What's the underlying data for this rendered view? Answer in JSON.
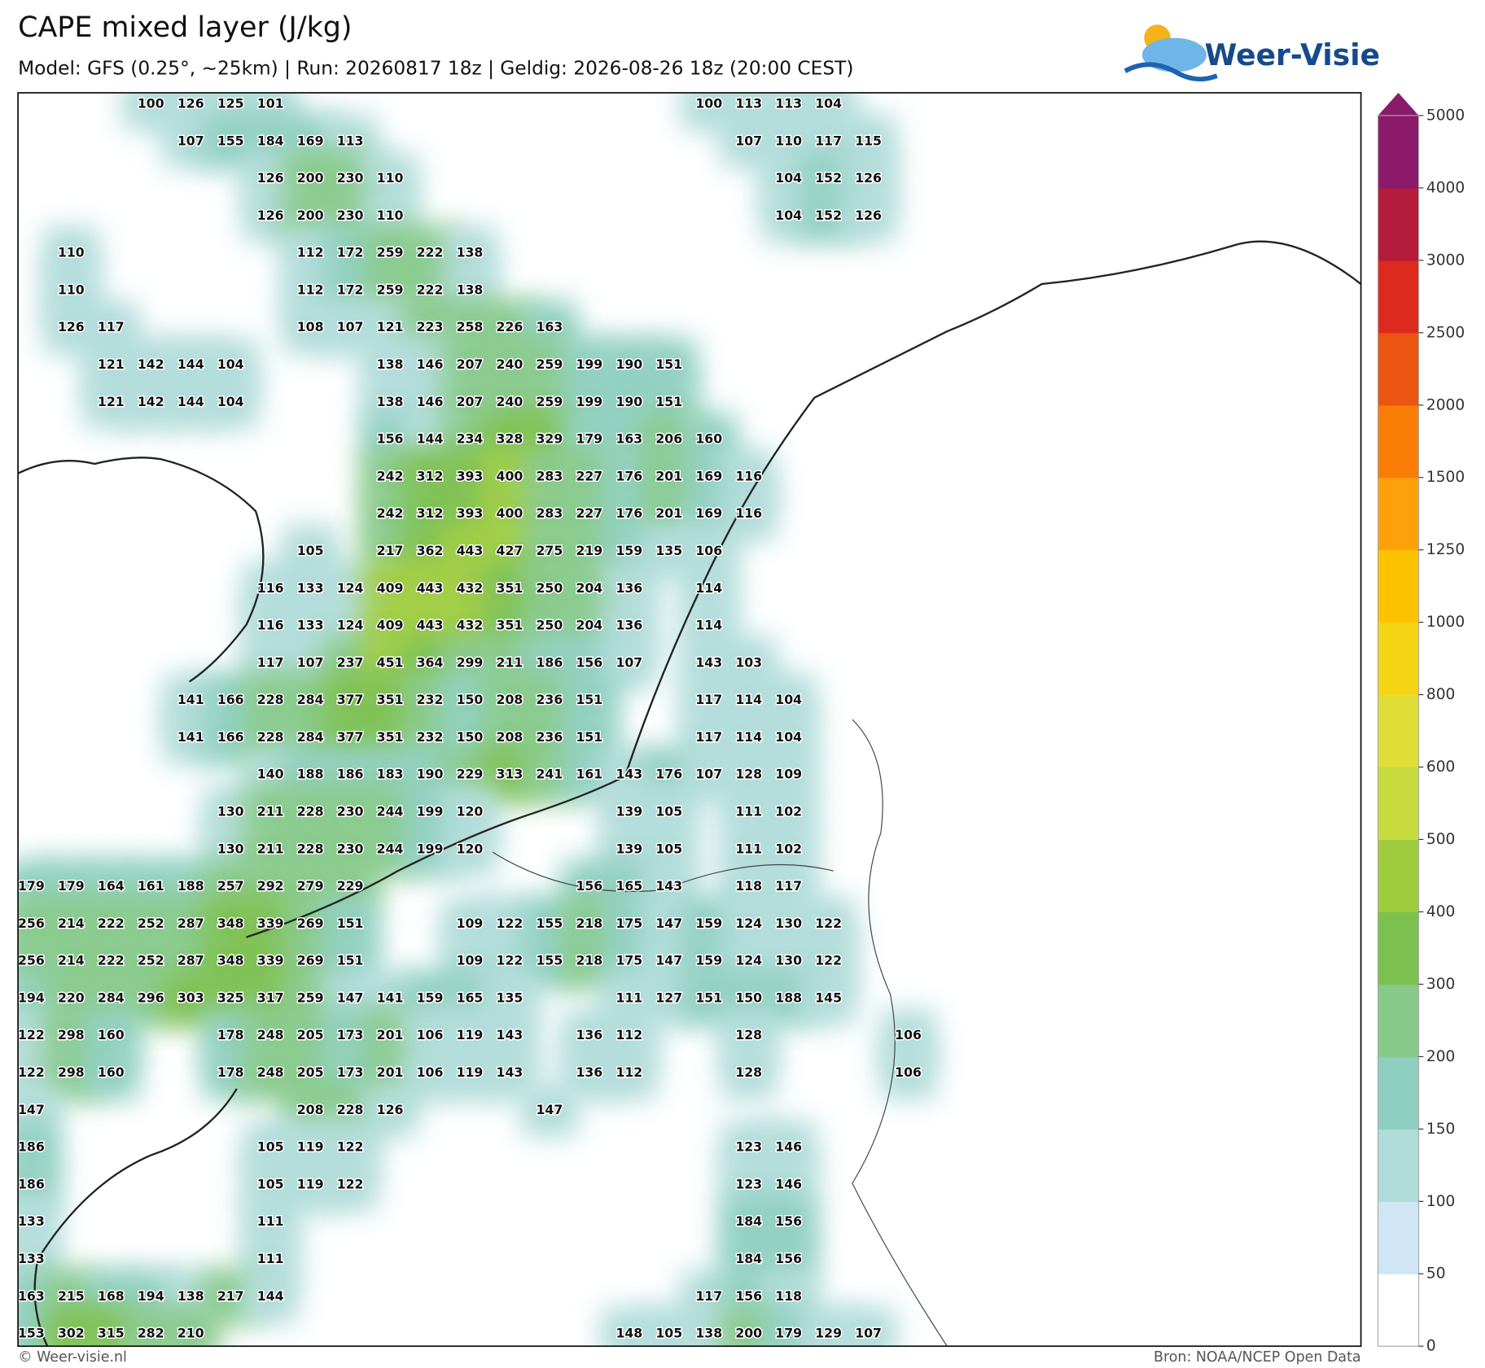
{
  "header": {
    "title": "CAPE mixed layer (J/kg)",
    "subtitle": "Model: GFS (0.25°, ~25km)  |  Run: 20260817 18z  |  Geldig: 2026-08-26 18z (20:00 CEST)"
  },
  "logo": {
    "text": "Weer-Visie"
  },
  "map": {
    "rows": [
      [
        null,
        null,
        null,
        100,
        126,
        125,
        101,
        null,
        null,
        null,
        null,
        null,
        null,
        null,
        null,
        null,
        null,
        100,
        113,
        113,
        104,
        null,
        null
      ],
      [
        null,
        null,
        null,
        null,
        107,
        155,
        184,
        169,
        113,
        null,
        null,
        null,
        null,
        null,
        null,
        null,
        null,
        null,
        107,
        110,
        117,
        115,
        null
      ],
      [
        null,
        null,
        null,
        null,
        null,
        null,
        126,
        200,
        230,
        110,
        null,
        null,
        null,
        null,
        null,
        null,
        null,
        null,
        null,
        104,
        152,
        126,
        null
      ],
      [
        null,
        null,
        null,
        null,
        null,
        null,
        126,
        200,
        230,
        110,
        null,
        null,
        null,
        null,
        null,
        null,
        null,
        null,
        null,
        104,
        152,
        126,
        null
      ],
      [
        null,
        110,
        null,
        null,
        null,
        null,
        null,
        112,
        172,
        259,
        222,
        138,
        null,
        null,
        null,
        null,
        null,
        null,
        null,
        null,
        null,
        null,
        null
      ],
      [
        null,
        110,
        null,
        null,
        null,
        null,
        null,
        112,
        172,
        259,
        222,
        138,
        null,
        null,
        null,
        null,
        null,
        null,
        null,
        null,
        null,
        null,
        null
      ],
      [
        null,
        126,
        117,
        null,
        null,
        null,
        null,
        108,
        107,
        121,
        223,
        258,
        226,
        163,
        null,
        null,
        null,
        null,
        null,
        null,
        null,
        null,
        null
      ],
      [
        null,
        null,
        121,
        142,
        144,
        104,
        null,
        null,
        null,
        138,
        146,
        207,
        240,
        259,
        199,
        190,
        151,
        null,
        null,
        null,
        null,
        null,
        null
      ],
      [
        null,
        null,
        121,
        142,
        144,
        104,
        null,
        null,
        null,
        138,
        146,
        207,
        240,
        259,
        199,
        190,
        151,
        null,
        null,
        null,
        null,
        null,
        null
      ],
      [
        null,
        null,
        null,
        null,
        null,
        null,
        null,
        null,
        null,
        156,
        144,
        234,
        328,
        329,
        179,
        163,
        206,
        160,
        null,
        null,
        null,
        null,
        null
      ],
      [
        null,
        null,
        null,
        null,
        null,
        null,
        null,
        null,
        null,
        242,
        312,
        393,
        400,
        283,
        227,
        176,
        201,
        169,
        116,
        null,
        null,
        null,
        null
      ],
      [
        null,
        null,
        null,
        null,
        null,
        null,
        null,
        null,
        null,
        242,
        312,
        393,
        400,
        283,
        227,
        176,
        201,
        169,
        116,
        null,
        null,
        null,
        null
      ],
      [
        null,
        null,
        null,
        null,
        null,
        null,
        null,
        105,
        null,
        217,
        362,
        443,
        427,
        275,
        219,
        159,
        135,
        106,
        null,
        null,
        null,
        null,
        null
      ],
      [
        null,
        null,
        null,
        null,
        null,
        null,
        116,
        133,
        124,
        409,
        443,
        432,
        351,
        250,
        204,
        136,
        null,
        114,
        null,
        null,
        null,
        null,
        null
      ],
      [
        null,
        null,
        null,
        null,
        null,
        null,
        116,
        133,
        124,
        409,
        443,
        432,
        351,
        250,
        204,
        136,
        null,
        114,
        null,
        null,
        null,
        null,
        null
      ],
      [
        null,
        null,
        null,
        null,
        null,
        null,
        117,
        107,
        237,
        451,
        364,
        299,
        211,
        186,
        156,
        107,
        null,
        143,
        103,
        null,
        null,
        null,
        null
      ],
      [
        null,
        null,
        null,
        null,
        141,
        166,
        228,
        284,
        377,
        351,
        232,
        150,
        208,
        236,
        151,
        null,
        null,
        117,
        114,
        104,
        null,
        null,
        null
      ],
      [
        null,
        null,
        null,
        null,
        141,
        166,
        228,
        284,
        377,
        351,
        232,
        150,
        208,
        236,
        151,
        null,
        null,
        117,
        114,
        104,
        null,
        null,
        null
      ],
      [
        null,
        null,
        null,
        null,
        null,
        null,
        140,
        188,
        186,
        183,
        190,
        229,
        313,
        241,
        161,
        143,
        176,
        107,
        128,
        109,
        null,
        null,
        null
      ],
      [
        null,
        null,
        null,
        null,
        null,
        130,
        211,
        228,
        230,
        244,
        199,
        120,
        null,
        null,
        null,
        139,
        105,
        null,
        111,
        102,
        null,
        null,
        null
      ],
      [
        null,
        null,
        null,
        null,
        null,
        130,
        211,
        228,
        230,
        244,
        199,
        120,
        null,
        null,
        null,
        139,
        105,
        null,
        111,
        102,
        null,
        null,
        null
      ],
      [
        179,
        179,
        164,
        161,
        188,
        257,
        292,
        279,
        229,
        null,
        null,
        null,
        null,
        null,
        156,
        165,
        143,
        null,
        118,
        117,
        null,
        null,
        null
      ],
      [
        256,
        214,
        222,
        252,
        287,
        348,
        339,
        269,
        151,
        null,
        null,
        109,
        122,
        155,
        218,
        175,
        147,
        159,
        124,
        130,
        122,
        null,
        null
      ],
      [
        256,
        214,
        222,
        252,
        287,
        348,
        339,
        269,
        151,
        null,
        null,
        109,
        122,
        155,
        218,
        175,
        147,
        159,
        124,
        130,
        122,
        null,
        null
      ],
      [
        194,
        220,
        284,
        296,
        303,
        325,
        317,
        259,
        147,
        141,
        159,
        165,
        135,
        null,
        null,
        111,
        127,
        151,
        150,
        188,
        145,
        null,
        null
      ],
      [
        122,
        298,
        160,
        null,
        null,
        178,
        248,
        205,
        173,
        201,
        106,
        119,
        143,
        null,
        136,
        112,
        null,
        null,
        128,
        null,
        null,
        null,
        106
      ],
      [
        122,
        298,
        160,
        null,
        null,
        178,
        248,
        205,
        173,
        201,
        106,
        119,
        143,
        null,
        136,
        112,
        null,
        null,
        128,
        null,
        null,
        null,
        106
      ],
      [
        147,
        null,
        null,
        null,
        null,
        null,
        null,
        208,
        228,
        126,
        null,
        null,
        null,
        147,
        null,
        null,
        null,
        null,
        null,
        null,
        null,
        null,
        null
      ],
      [
        186,
        null,
        null,
        null,
        null,
        null,
        105,
        119,
        122,
        null,
        null,
        null,
        null,
        null,
        null,
        null,
        null,
        null,
        123,
        146,
        null,
        null,
        null
      ],
      [
        186,
        null,
        null,
        null,
        null,
        null,
        105,
        119,
        122,
        null,
        null,
        null,
        null,
        null,
        null,
        null,
        null,
        null,
        123,
        146,
        null,
        null,
        null
      ],
      [
        133,
        null,
        null,
        null,
        null,
        null,
        111,
        null,
        null,
        null,
        null,
        null,
        null,
        null,
        null,
        null,
        null,
        null,
        184,
        156,
        null,
        null,
        null
      ],
      [
        133,
        null,
        null,
        null,
        null,
        null,
        111,
        null,
        null,
        null,
        null,
        null,
        null,
        null,
        null,
        null,
        null,
        null,
        184,
        156,
        null,
        null,
        null
      ],
      [
        163,
        215,
        168,
        194,
        138,
        217,
        144,
        null,
        null,
        null,
        null,
        null,
        null,
        null,
        null,
        null,
        null,
        117,
        156,
        118,
        null,
        null,
        null
      ],
      [
        153,
        302,
        315,
        282,
        210,
        null,
        null,
        null,
        null,
        null,
        null,
        null,
        null,
        null,
        null,
        148,
        105,
        138,
        200,
        179,
        129,
        107,
        null
      ]
    ]
  },
  "colorbar": {
    "levels": [
      0,
      50,
      100,
      150,
      200,
      300,
      400,
      500,
      600,
      800,
      1000,
      1250,
      1500,
      2000,
      2500,
      3000,
      4000,
      5000
    ],
    "colors": [
      "#ffffff",
      "#d0e6f5",
      "#b0dcd9",
      "#8ecfc0",
      "#86c98a",
      "#7cc050",
      "#9fcc3f",
      "#c6da3e",
      "#e0df37",
      "#f4d515",
      "#fdc300",
      "#fca10a",
      "#f97d06",
      "#ec5511",
      "#dc2a1f",
      "#b51b3a",
      "#8b1a6b"
    ]
  },
  "footer": {
    "left": "© Weer-visie.nl",
    "right": "Bron: NOAA/NCEP Open Data"
  }
}
